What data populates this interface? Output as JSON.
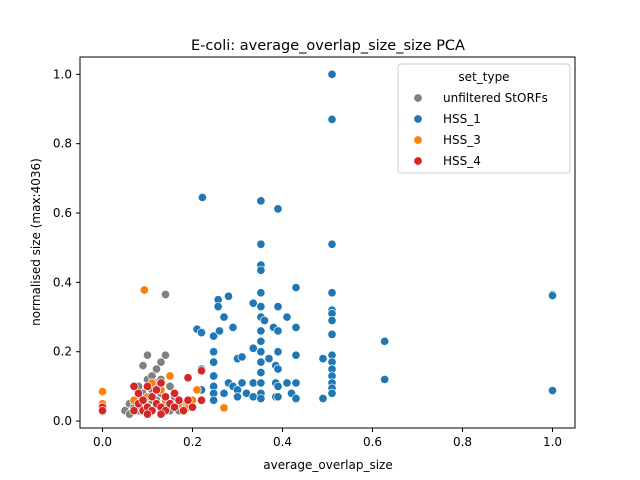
{
  "chart_data": {
    "type": "scatter",
    "title": "E-coli: average_overlap_size_size PCA",
    "xlabel": "average_overlap_size",
    "ylabel": "normalised size (max:4036)",
    "xlim": [
      -0.05,
      1.05
    ],
    "ylim": [
      -0.02,
      1.05
    ],
    "xticks": [
      0.0,
      0.2,
      0.4,
      0.6,
      0.8,
      1.0
    ],
    "xtick_labels": [
      "0.0",
      "0.2",
      "0.4",
      "0.6",
      "0.8",
      "1.0"
    ],
    "yticks": [
      0.0,
      0.2,
      0.4,
      0.6,
      0.8,
      1.0
    ],
    "ytick_labels": [
      "0.0",
      "0.2",
      "0.4",
      "0.6",
      "0.8",
      "1.0"
    ],
    "grid": false,
    "legend": {
      "title": "set_type",
      "position": "top-right"
    },
    "series": [
      {
        "name": "unfiltered StORFs",
        "color": "#808080",
        "points": [
          [
            0.05,
            0.03
          ],
          [
            0.06,
            0.05
          ],
          [
            0.07,
            0.04
          ],
          [
            0.07,
            0.06
          ],
          [
            0.08,
            0.03
          ],
          [
            0.08,
            0.07
          ],
          [
            0.09,
            0.05
          ],
          [
            0.09,
            0.08
          ],
          [
            0.09,
            0.16
          ],
          [
            0.1,
            0.19
          ],
          [
            0.1,
            0.12
          ],
          [
            0.1,
            0.04
          ],
          [
            0.11,
            0.09
          ],
          [
            0.11,
            0.13
          ],
          [
            0.12,
            0.06
          ],
          [
            0.12,
            0.11
          ],
          [
            0.12,
            0.15
          ],
          [
            0.13,
            0.08
          ],
          [
            0.13,
            0.17
          ],
          [
            0.14,
            0.365
          ],
          [
            0.14,
            0.19
          ],
          [
            0.14,
            0.05
          ],
          [
            0.15,
            0.1
          ],
          [
            0.15,
            0.03
          ],
          [
            0.16,
            0.07
          ],
          [
            0.16,
            0.04
          ],
          [
            0.17,
            0.03
          ],
          [
            0.18,
            0.05
          ],
          [
            0.13,
            0.12
          ],
          [
            0.11,
            0.06
          ],
          [
            0.08,
            0.1
          ],
          [
            0.06,
            0.02
          ]
        ]
      },
      {
        "name": "HSS_1",
        "color": "#1f77b4",
        "points": [
          [
            0.222,
            0.645
          ],
          [
            0.21,
            0.265
          ],
          [
            0.22,
            0.255
          ],
          [
            0.22,
            0.15
          ],
          [
            0.22,
            0.09
          ],
          [
            0.22,
            0.06
          ],
          [
            0.247,
            0.245
          ],
          [
            0.247,
            0.2
          ],
          [
            0.247,
            0.17
          ],
          [
            0.247,
            0.13
          ],
          [
            0.247,
            0.1
          ],
          [
            0.247,
            0.08
          ],
          [
            0.247,
            0.06
          ],
          [
            0.257,
            0.35
          ],
          [
            0.257,
            0.33
          ],
          [
            0.26,
            0.26
          ],
          [
            0.27,
            0.3
          ],
          [
            0.27,
            0.08
          ],
          [
            0.28,
            0.36
          ],
          [
            0.28,
            0.11
          ],
          [
            0.29,
            0.27
          ],
          [
            0.29,
            0.1
          ],
          [
            0.3,
            0.09
          ],
          [
            0.3,
            0.18
          ],
          [
            0.3,
            0.07
          ],
          [
            0.31,
            0.11
          ],
          [
            0.31,
            0.185
          ],
          [
            0.32,
            0.08
          ],
          [
            0.335,
            0.34
          ],
          [
            0.335,
            0.21
          ],
          [
            0.335,
            0.11
          ],
          [
            0.335,
            0.07
          ],
          [
            0.352,
            0.635
          ],
          [
            0.352,
            0.51
          ],
          [
            0.352,
            0.45
          ],
          [
            0.352,
            0.435
          ],
          [
            0.352,
            0.37
          ],
          [
            0.352,
            0.33
          ],
          [
            0.352,
            0.3
          ],
          [
            0.352,
            0.26
          ],
          [
            0.352,
            0.23
          ],
          [
            0.352,
            0.2
          ],
          [
            0.352,
            0.17
          ],
          [
            0.352,
            0.14
          ],
          [
            0.352,
            0.11
          ],
          [
            0.352,
            0.08
          ],
          [
            0.352,
            0.065
          ],
          [
            0.36,
            0.29
          ],
          [
            0.37,
            0.18
          ],
          [
            0.38,
            0.27
          ],
          [
            0.385,
            0.16
          ],
          [
            0.385,
            0.11
          ],
          [
            0.385,
            0.07
          ],
          [
            0.39,
            0.612
          ],
          [
            0.39,
            0.33
          ],
          [
            0.39,
            0.26
          ],
          [
            0.39,
            0.2
          ],
          [
            0.39,
            0.15
          ],
          [
            0.39,
            0.1
          ],
          [
            0.39,
            0.07
          ],
          [
            0.41,
            0.3
          ],
          [
            0.41,
            0.11
          ],
          [
            0.42,
            0.08
          ],
          [
            0.43,
            0.385
          ],
          [
            0.43,
            0.27
          ],
          [
            0.43,
            0.19
          ],
          [
            0.43,
            0.11
          ],
          [
            0.43,
            0.065
          ],
          [
            0.49,
            0.18
          ],
          [
            0.49,
            0.065
          ],
          [
            0.51,
            1.0
          ],
          [
            0.51,
            0.87
          ],
          [
            0.51,
            0.51
          ],
          [
            0.51,
            0.37
          ],
          [
            0.51,
            0.32
          ],
          [
            0.51,
            0.31
          ],
          [
            0.51,
            0.29
          ],
          [
            0.51,
            0.25
          ],
          [
            0.51,
            0.19
          ],
          [
            0.51,
            0.17
          ],
          [
            0.51,
            0.15
          ],
          [
            0.51,
            0.13
          ],
          [
            0.51,
            0.11
          ],
          [
            0.51,
            0.095
          ],
          [
            0.51,
            0.08
          ],
          [
            0.627,
            0.23
          ],
          [
            0.627,
            0.12
          ],
          [
            1.0,
            0.365
          ],
          [
            1.0,
            0.362
          ],
          [
            1.0,
            0.088
          ]
        ]
      },
      {
        "name": "HSS_3",
        "color": "#ff7f0e",
        "points": [
          [
            0.0,
            0.085
          ],
          [
            0.0,
            0.05
          ],
          [
            0.093,
            0.378
          ],
          [
            0.07,
            0.06
          ],
          [
            0.08,
            0.08
          ],
          [
            0.09,
            0.04
          ],
          [
            0.1,
            0.07
          ],
          [
            0.11,
            0.11
          ],
          [
            0.12,
            0.05
          ],
          [
            0.13,
            0.09
          ],
          [
            0.14,
            0.06
          ],
          [
            0.15,
            0.13
          ],
          [
            0.16,
            0.08
          ],
          [
            0.17,
            0.05
          ],
          [
            0.2,
            0.06
          ],
          [
            0.21,
            0.09
          ],
          [
            0.27,
            0.038
          ],
          [
            0.19,
            0.04
          ]
        ]
      },
      {
        "name": "HSS_4",
        "color": "#d62728",
        "points": [
          [
            0.0,
            0.04
          ],
          [
            0.0,
            0.03
          ],
          [
            0.07,
            0.03
          ],
          [
            0.07,
            0.1
          ],
          [
            0.08,
            0.05
          ],
          [
            0.08,
            0.08
          ],
          [
            0.09,
            0.03
          ],
          [
            0.09,
            0.06
          ],
          [
            0.1,
            0.04
          ],
          [
            0.1,
            0.1
          ],
          [
            0.11,
            0.03
          ],
          [
            0.11,
            0.07
          ],
          [
            0.12,
            0.05
          ],
          [
            0.12,
            0.09
          ],
          [
            0.13,
            0.04
          ],
          [
            0.13,
            0.11
          ],
          [
            0.14,
            0.03
          ],
          [
            0.14,
            0.07
          ],
          [
            0.15,
            0.05
          ],
          [
            0.16,
            0.04
          ],
          [
            0.16,
            0.08
          ],
          [
            0.17,
            0.06
          ],
          [
            0.18,
            0.03
          ],
          [
            0.19,
            0.125
          ],
          [
            0.19,
            0.06
          ],
          [
            0.2,
            0.04
          ],
          [
            0.22,
            0.145
          ],
          [
            0.22,
            0.06
          ],
          [
            0.13,
            0.02
          ],
          [
            0.1,
            0.02
          ]
        ]
      }
    ]
  }
}
